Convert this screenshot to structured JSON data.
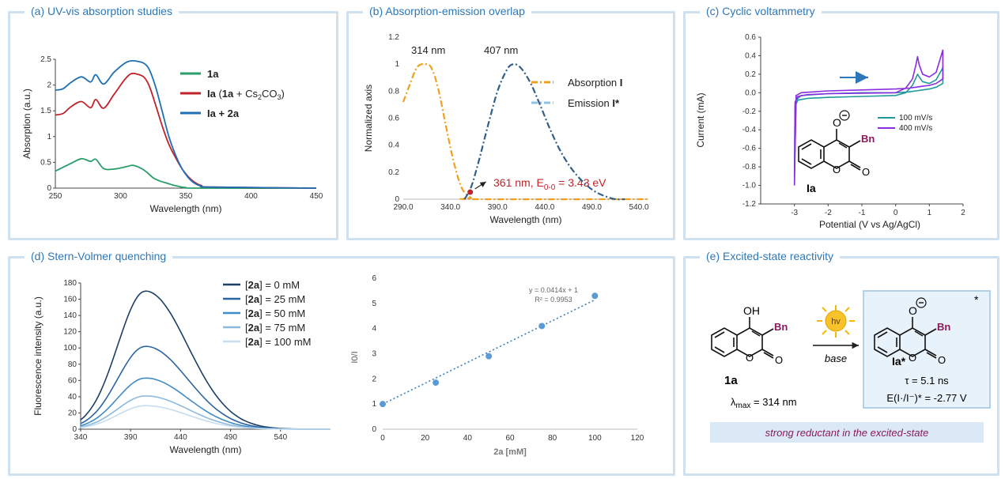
{
  "panels": {
    "a": {
      "title": "(a) UV-vis absorption studies"
    },
    "b": {
      "title": "(b) Absorption-emission overlap"
    },
    "c": {
      "title": "(c) Cyclic voltammetry"
    },
    "d": {
      "title": "(d) Stern-Volmer quenching"
    },
    "e": {
      "title": "(e) Excited-state reactivity"
    }
  },
  "chart_data": [
    {
      "id": "a",
      "type": "line",
      "xlabel": "Wavelength (nm)",
      "ylabel": "Absorption (a.u.)",
      "xlim": [
        250,
        450
      ],
      "ylim": [
        0,
        2.5
      ],
      "xticks": [
        250,
        300,
        350,
        400,
        450
      ],
      "yticks": [
        0,
        0.5,
        1,
        1.5,
        2,
        2.5
      ],
      "legend_position": "right",
      "series": [
        {
          "name": "1a",
          "color": "#2a9d6b",
          "x": [
            250,
            262,
            270,
            277,
            281,
            287,
            295,
            305,
            310,
            318,
            325,
            330,
            335,
            340,
            345,
            350,
            360,
            450
          ],
          "y": [
            0.33,
            0.48,
            0.57,
            0.52,
            0.56,
            0.38,
            0.37,
            0.42,
            0.44,
            0.35,
            0.2,
            0.14,
            0.1,
            0.06,
            0.03,
            0.01,
            0,
            0
          ]
        },
        {
          "name": "Ia (1a + Cs2CO3)",
          "color": "#c0232a",
          "x": [
            250,
            256,
            262,
            270,
            277,
            281,
            287,
            295,
            303,
            308,
            313,
            318,
            322,
            327,
            332,
            337,
            342,
            347,
            352,
            357,
            362,
            370,
            450
          ],
          "y": [
            1.42,
            1.45,
            1.58,
            1.68,
            1.56,
            1.72,
            1.55,
            1.82,
            2.1,
            2.22,
            2.21,
            2.15,
            1.98,
            1.6,
            1.2,
            0.85,
            0.6,
            0.38,
            0.22,
            0.11,
            0.05,
            0.02,
            0
          ]
        },
        {
          "name": "Ia + 2a",
          "color": "#1f6fb4",
          "x": [
            250,
            256,
            262,
            270,
            277,
            281,
            287,
            295,
            303,
            308,
            313,
            318,
            322,
            327,
            332,
            337,
            342,
            347,
            352,
            357,
            362,
            370,
            450
          ],
          "y": [
            1.9,
            1.93,
            2.05,
            2.16,
            2.06,
            2.2,
            2.02,
            2.25,
            2.42,
            2.47,
            2.46,
            2.42,
            2.3,
            1.95,
            1.48,
            1.0,
            0.65,
            0.38,
            0.2,
            0.09,
            0.04,
            0.02,
            0
          ]
        }
      ]
    },
    {
      "id": "b",
      "type": "line",
      "xlabel": "Wavelength (nm)",
      "ylabel": "Normalized axis",
      "xlim": [
        290,
        550
      ],
      "ylim": [
        0,
        1.2
      ],
      "xticks": [
        "290.0",
        "340.0",
        "390.0",
        "440.0",
        "490.0",
        "540.0"
      ],
      "yticks": [
        "0",
        "0.2",
        "0.4",
        "0.6",
        "0.8",
        "1",
        "1.2"
      ],
      "legend_position": "right",
      "series": [
        {
          "name": "Absorption I",
          "color": "#f0a020",
          "x": [
            290,
            297,
            305,
            314,
            320,
            327,
            335,
            342,
            348,
            353,
            358,
            362,
            365,
            550
          ],
          "y": [
            0.72,
            0.85,
            0.98,
            1.0,
            0.97,
            0.82,
            0.55,
            0.32,
            0.16,
            0.07,
            0.03,
            0.01,
            0,
            0
          ]
        },
        {
          "name": "Emission I*",
          "color": "#2f5f8a",
          "x": [
            355,
            362,
            370,
            380,
            390,
            400,
            407,
            415,
            425,
            435,
            445,
            455,
            465,
            475,
            485,
            495,
            505,
            515,
            525
          ],
          "y": [
            0,
            0.09,
            0.28,
            0.55,
            0.8,
            0.96,
            1.0,
            0.97,
            0.86,
            0.7,
            0.53,
            0.38,
            0.26,
            0.17,
            0.1,
            0.05,
            0.02,
            0,
            0
          ]
        }
      ],
      "annotations": [
        {
          "text": "314 nm",
          "x": 314,
          "y": 1.07
        },
        {
          "text": "407 nm",
          "x": 407,
          "y": 1.07
        },
        {
          "text": "361 nm, E0-0 = 3.43 eV",
          "point": [
            361,
            0.07
          ]
        }
      ]
    },
    {
      "id": "c",
      "type": "line",
      "xlabel": "Potential (V vs Ag/AgCl)",
      "ylabel": "Current (mA)",
      "xlim": [
        -4,
        2
      ],
      "ylim": [
        -1.2,
        0.6
      ],
      "xticks": [
        -3,
        -2,
        -1,
        0,
        1,
        2
      ],
      "yticks": [
        "0.6",
        "0.4",
        "0.2",
        "0.0",
        "-0.2",
        "-0.4",
        "-0.6",
        "-0.8",
        "-1.0",
        "-1.2"
      ],
      "legend_position": "right",
      "series": [
        {
          "name": "100 mV/s",
          "color": "#1f9a9a",
          "x": [
            -3.0,
            -2.98,
            -2.9,
            -2.6,
            -2.0,
            -1.0,
            0.0,
            0.3,
            0.5,
            0.6,
            0.65,
            0.7,
            0.8,
            1.0,
            1.2,
            1.4,
            1.4,
            1.2,
            1.0,
            0.8,
            0.6,
            0.4,
            0,
            -1,
            -2,
            -2.8,
            -2.95,
            -3.0
          ],
          "y": [
            -0.9,
            -0.15,
            -0.08,
            -0.06,
            -0.05,
            -0.04,
            -0.03,
            0,
            0.08,
            0.16,
            0.2,
            0.17,
            0.12,
            0.1,
            0.14,
            0.27,
            0.1,
            0.06,
            0.04,
            0.03,
            0.02,
            0.01,
            0,
            0,
            -0.01,
            -0.03,
            -0.08,
            -0.9
          ]
        },
        {
          "name": "400 mV/s",
          "color": "#8a2be2",
          "x": [
            -3.0,
            -2.98,
            -2.9,
            -2.6,
            -2.0,
            -1.0,
            0.0,
            0.3,
            0.5,
            0.6,
            0.65,
            0.7,
            0.8,
            1.0,
            1.2,
            1.4,
            1.4,
            1.2,
            1.0,
            0.8,
            0.6,
            0.4,
            0,
            -1,
            -2,
            -2.8,
            -2.95,
            -3.0
          ],
          "y": [
            -1.0,
            -0.1,
            -0.04,
            -0.02,
            -0.01,
            -0.005,
            0,
            0.05,
            0.15,
            0.3,
            0.39,
            0.3,
            0.2,
            0.17,
            0.22,
            0.46,
            0.15,
            0.1,
            0.08,
            0.07,
            0.06,
            0.05,
            0.04,
            0.03,
            0.02,
            0,
            -0.03,
            -1.0
          ]
        }
      ]
    },
    {
      "id": "d1",
      "type": "line",
      "xlabel": "Wavelength (nm)",
      "ylabel": "Fluorescence intensity (a.u.)",
      "xlim": [
        340,
        590
      ],
      "ylim": [
        0,
        180
      ],
      "xticks": [
        340,
        390,
        440,
        490,
        540
      ],
      "yticks": [
        0,
        20,
        40,
        60,
        80,
        100,
        120,
        140,
        160,
        180
      ],
      "legend_position": "right",
      "series": [
        {
          "name": "[2a] = 0 mM",
          "color": "#1d3f66",
          "peak": 170
        },
        {
          "name": "[2a] = 25 mM",
          "color": "#2c64a0",
          "peak": 102
        },
        {
          "name": "[2a] = 50 mM",
          "color": "#3f8cc6",
          "peak": 63
        },
        {
          "name": "[2a] = 75 mM",
          "color": "#8cb9dd",
          "peak": 41
        },
        {
          "name": "[2a] = 100 mM",
          "color": "#c6dcef",
          "peak": 29
        }
      ],
      "peak_x": 405
    },
    {
      "id": "d2",
      "type": "scatter",
      "xlabel": "2a [mM]",
      "ylabel": "I0/I",
      "xlim": [
        0,
        120
      ],
      "ylim": [
        0,
        6
      ],
      "xticks": [
        0,
        20,
        40,
        60,
        80,
        100,
        120
      ],
      "yticks": [
        0,
        1,
        2,
        3,
        4,
        5,
        6
      ],
      "x": [
        0,
        25,
        50,
        75,
        100
      ],
      "y": [
        1.0,
        1.85,
        2.9,
        4.1,
        5.3
      ],
      "fit": {
        "equation": "y = 0.0414x + 1",
        "r2": "R² = 0.9953",
        "slope": 0.0414,
        "intercept": 1
      }
    }
  ],
  "panel_c_legend": [
    "100 mV/s",
    "400 mV/s"
  ],
  "scheme_c": {
    "label": "Ia",
    "substituent": "Bn"
  },
  "scheme_e": {
    "reactant_label": "1a",
    "oh": "OH",
    "substituent": "Bn",
    "hv": "hv",
    "reagent": "base",
    "lambda": "λmax = 314 nm",
    "product_label": "Ia*",
    "tau": "τ = 5.1 ns",
    "potential": "E(I·/I⁻)* = -2.77 V",
    "banner": "strong reductant in the excited-state"
  }
}
